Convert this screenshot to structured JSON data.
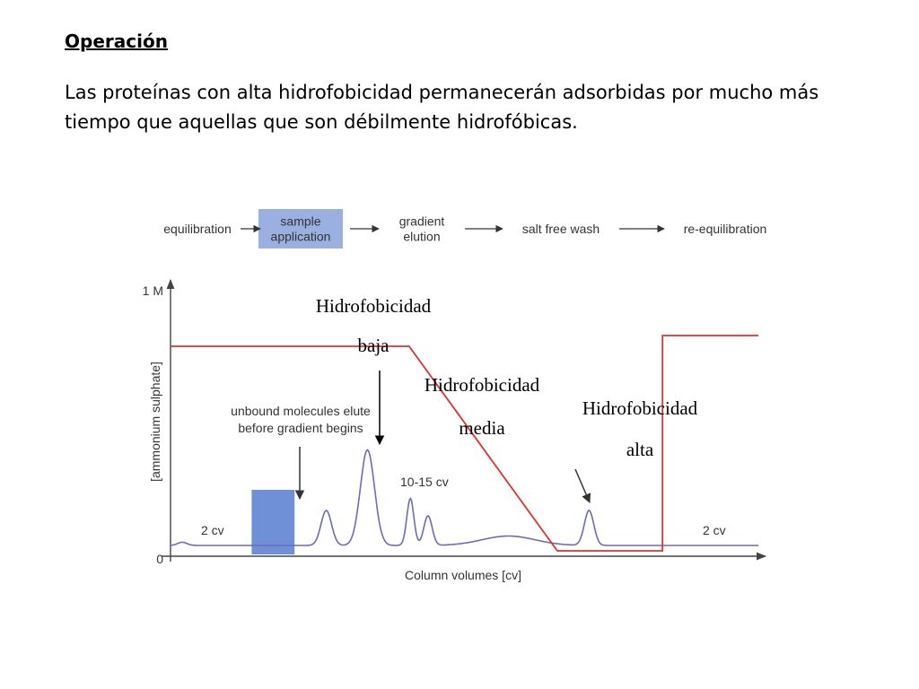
{
  "slide": {
    "heading": "Operación",
    "body": "Las proteínas con alta hidrofobicidad permanecerán adsorbidas por mucho más tiempo que aquellas que son débilmente hidrofóbicas."
  },
  "workflow": {
    "steps": [
      {
        "lines": [
          "equilibration"
        ],
        "highlighted": false
      },
      {
        "lines": [
          "sample",
          "application"
        ],
        "highlighted": true
      },
      {
        "lines": [
          "gradient",
          "elution"
        ],
        "highlighted": false
      },
      {
        "lines": [
          "salt free wash"
        ],
        "highlighted": false
      },
      {
        "lines": [
          "re-equilibration"
        ],
        "highlighted": false
      }
    ],
    "highlight_color": "#9ab0e0"
  },
  "chart_data": {
    "type": "line",
    "xlabel": "Column volumes [cv]",
    "ylabel": "[ammonium sulphate]",
    "y_ticks": [
      "1 M",
      "0"
    ],
    "colors": {
      "salt": "#e03030",
      "absorbance": "#6b6bbb",
      "sample_band": "#6f90d6",
      "axis": "#444444"
    },
    "series": [
      {
        "role": "salt",
        "points": [
          [
            0,
            0.78
          ],
          [
            0.406,
            0.78
          ],
          [
            0.658,
            0.02
          ],
          [
            0.837,
            0.02
          ],
          [
            0.837,
            0.82
          ],
          [
            1.0,
            0.82
          ]
        ]
      },
      {
        "role": "absorbance",
        "peaks": [
          {
            "x": 0.265,
            "height": 0.13,
            "width": 0.009
          },
          {
            "x": 0.335,
            "height": 0.355,
            "width": 0.012
          },
          {
            "x": 0.408,
            "height": 0.175,
            "width": 0.006
          },
          {
            "x": 0.438,
            "height": 0.11,
            "width": 0.007
          },
          {
            "x": 0.575,
            "height": 0.035,
            "width": 0.045
          },
          {
            "x": 0.712,
            "height": 0.13,
            "width": 0.008
          }
        ],
        "baseline": 0.04
      }
    ],
    "regions": [
      {
        "x_start": 0.138,
        "x_end": 0.211
      }
    ],
    "annotations": {
      "cv_left": "2 cv",
      "cv_right": "2 cv",
      "cv_mid": "10-15 cv",
      "unbound": [
        "unbound molecules elute",
        "before gradient begins"
      ]
    },
    "labels": [
      {
        "lines": [
          "Hidrofobicidad",
          "baja"
        ]
      },
      {
        "lines": [
          "Hidrofobicidad",
          "media"
        ]
      },
      {
        "lines": [
          "Hidrofobicidad",
          "alta"
        ]
      }
    ]
  }
}
